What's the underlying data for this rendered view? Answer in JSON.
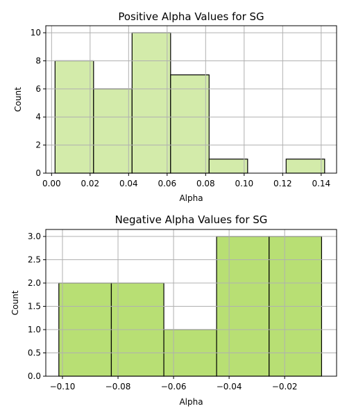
{
  "chart_data": [
    {
      "type": "bar",
      "title": "Positive Alpha Values for SG",
      "xlabel": "Alpha",
      "ylabel": "Count",
      "xlim": [
        -0.003,
        0.148
      ],
      "ylim": [
        0,
        10.5
      ],
      "xticks": [
        0.0,
        0.02,
        0.04,
        0.06,
        0.08,
        0.1,
        0.12,
        0.14
      ],
      "xtick_labels": [
        "0.00",
        "0.02",
        "0.04",
        "0.06",
        "0.08",
        "0.10",
        "0.12",
        "0.14"
      ],
      "yticks": [
        0,
        2,
        4,
        6,
        8,
        10
      ],
      "ytick_labels": [
        "0",
        "2",
        "4",
        "6",
        "8",
        "10"
      ],
      "bins": [
        {
          "x0": 0.0018,
          "x1": 0.0218,
          "count": 8
        },
        {
          "x0": 0.0218,
          "x1": 0.0418,
          "count": 6
        },
        {
          "x0": 0.0418,
          "x1": 0.0618,
          "count": 10
        },
        {
          "x0": 0.0618,
          "x1": 0.0818,
          "count": 7
        },
        {
          "x0": 0.0818,
          "x1": 0.1018,
          "count": 1
        },
        {
          "x0": 0.1018,
          "x1": 0.1218,
          "count": 0
        },
        {
          "x0": 0.1218,
          "x1": 0.1418,
          "count": 1
        }
      ],
      "bar_color": "#d3ebaa",
      "grid": true
    },
    {
      "type": "bar",
      "title": "Negative Alpha Values for SG",
      "xlabel": "Alpha",
      "ylabel": "Count",
      "xlim": [
        -0.106,
        -0.0013
      ],
      "ylim": [
        0,
        3.15
      ],
      "xticks": [
        -0.1,
        -0.08,
        -0.06,
        -0.04,
        -0.02
      ],
      "xtick_labels": [
        "−0.10",
        "−0.08",
        "−0.06",
        "−0.04",
        "−0.02"
      ],
      "yticks": [
        0,
        0.5,
        1.0,
        1.5,
        2.0,
        2.5,
        3.0
      ],
      "ytick_labels": [
        "0.0",
        "0.5",
        "1.0",
        "1.5",
        "2.0",
        "2.5",
        "3.0"
      ],
      "bins": [
        {
          "x0": -0.1013,
          "x1": -0.0824,
          "count": 2
        },
        {
          "x0": -0.0824,
          "x1": -0.0635,
          "count": 2
        },
        {
          "x0": -0.0635,
          "x1": -0.0445,
          "count": 1
        },
        {
          "x0": -0.0445,
          "x1": -0.0256,
          "count": 3
        },
        {
          "x0": -0.0256,
          "x1": -0.0067,
          "count": 3
        }
      ],
      "bar_color": "#b8df74",
      "grid": true
    }
  ]
}
